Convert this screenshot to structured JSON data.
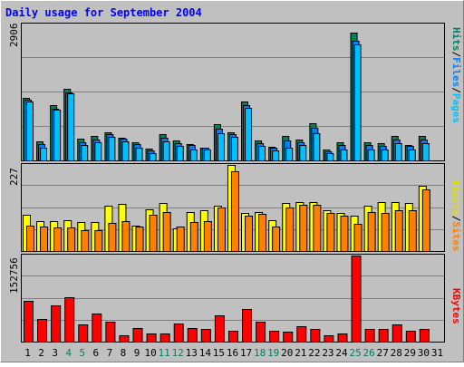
{
  "title": "Daily usage for September 2004",
  "colors": {
    "background": "#c0c0c0",
    "title": "#0000ff",
    "grid": "#808080",
    "hits": "#00805c",
    "files": "#0080ff",
    "pages": "#00c0ff",
    "visits": "#ff8000",
    "sites": "#ffff00",
    "kbytes": "#ff0000",
    "weekend_day": "#00805c",
    "weekday": "#000000"
  },
  "chart_data": [
    {
      "type": "bar",
      "panel": "traffic",
      "y_axis_max_label": "2906",
      "ylim": [
        0,
        2906
      ],
      "categories": [
        "1",
        "2",
        "3",
        "4",
        "5",
        "6",
        "7",
        "8",
        "9",
        "10",
        "11",
        "12",
        "13",
        "14",
        "15",
        "16",
        "17",
        "18",
        "19",
        "20",
        "21",
        "22",
        "23",
        "24",
        "25",
        "26",
        "27",
        "28",
        "29",
        "30",
        "31"
      ],
      "weekend_days": [
        "4",
        "5",
        "11",
        "12",
        "18",
        "19",
        "25",
        "26"
      ],
      "series_labels": {
        "hits": "Hits",
        "files": "Files",
        "pages": "Pages",
        "separator": "/"
      },
      "series": [
        {
          "name": "Hits",
          "values": [
            1330,
            400,
            1190,
            1540,
            460,
            520,
            610,
            480,
            380,
            250,
            560,
            420,
            340,
            280,
            780,
            610,
            1250,
            420,
            300,
            520,
            450,
            800,
            240,
            380,
            2730,
            380,
            360,
            520,
            330,
            530,
            0
          ]
        },
        {
          "name": "Files",
          "values": [
            1300,
            340,
            1100,
            1460,
            380,
            450,
            570,
            460,
            340,
            220,
            490,
            370,
            320,
            270,
            680,
            570,
            1180,
            370,
            270,
            420,
            380,
            700,
            190,
            320,
            2550,
            330,
            310,
            440,
            310,
            440,
            0
          ]
        },
        {
          "name": "Pages",
          "values": [
            1250,
            280,
            1080,
            1430,
            320,
            380,
            500,
            400,
            280,
            160,
            400,
            310,
            240,
            230,
            580,
            500,
            1130,
            310,
            220,
            280,
            320,
            580,
            150,
            230,
            2480,
            240,
            240,
            370,
            240,
            370,
            0
          ]
        }
      ]
    },
    {
      "type": "bar",
      "panel": "visitors",
      "y_axis_max_label": "227",
      "ylim": [
        0,
        227
      ],
      "categories": [
        "1",
        "2",
        "3",
        "4",
        "5",
        "6",
        "7",
        "8",
        "9",
        "10",
        "11",
        "12",
        "13",
        "14",
        "15",
        "16",
        "17",
        "18",
        "19",
        "20",
        "21",
        "22",
        "23",
        "24",
        "25",
        "26",
        "27",
        "28",
        "29",
        "30",
        "31"
      ],
      "series_labels": {
        "visits": "Visits",
        "sites": "Sites",
        "separator": "/"
      },
      "series": [
        {
          "name": "Visits",
          "values": [
            95,
            80,
            80,
            82,
            77,
            77,
            120,
            125,
            68,
            110,
            127,
            60,
            102,
            107,
            120,
            227,
            100,
            102,
            82,
            127,
            128,
            128,
            107,
            100,
            92,
            120,
            130,
            130,
            127,
            173,
            0
          ]
        },
        {
          "name": "Sites",
          "values": [
            67,
            65,
            63,
            62,
            56,
            56,
            75,
            80,
            64,
            95,
            102,
            64,
            77,
            80,
            115,
            210,
            93,
            98,
            65,
            115,
            123,
            123,
            100,
            92,
            72,
            103,
            100,
            107,
            107,
            162,
            0
          ]
        }
      ]
    },
    {
      "type": "bar",
      "panel": "kbytes",
      "y_axis_max_label": "152756",
      "ylim": [
        0,
        152756
      ],
      "categories": [
        "1",
        "2",
        "3",
        "4",
        "5",
        "6",
        "7",
        "8",
        "9",
        "10",
        "11",
        "12",
        "13",
        "14",
        "15",
        "16",
        "17",
        "18",
        "19",
        "20",
        "21",
        "22",
        "23",
        "24",
        "25",
        "26",
        "27",
        "28",
        "29",
        "30",
        "31"
      ],
      "series_labels": {
        "kbytes": "KBytes"
      },
      "series": [
        {
          "name": "KBytes",
          "values": [
            72000,
            40000,
            65000,
            78000,
            30000,
            50000,
            36000,
            12000,
            24000,
            14000,
            14000,
            32000,
            24000,
            22000,
            46000,
            20000,
            58000,
            36000,
            20000,
            18000,
            28000,
            22000,
            12000,
            14000,
            152756,
            22000,
            22000,
            30000,
            20000,
            22000,
            0
          ]
        }
      ]
    }
  ]
}
